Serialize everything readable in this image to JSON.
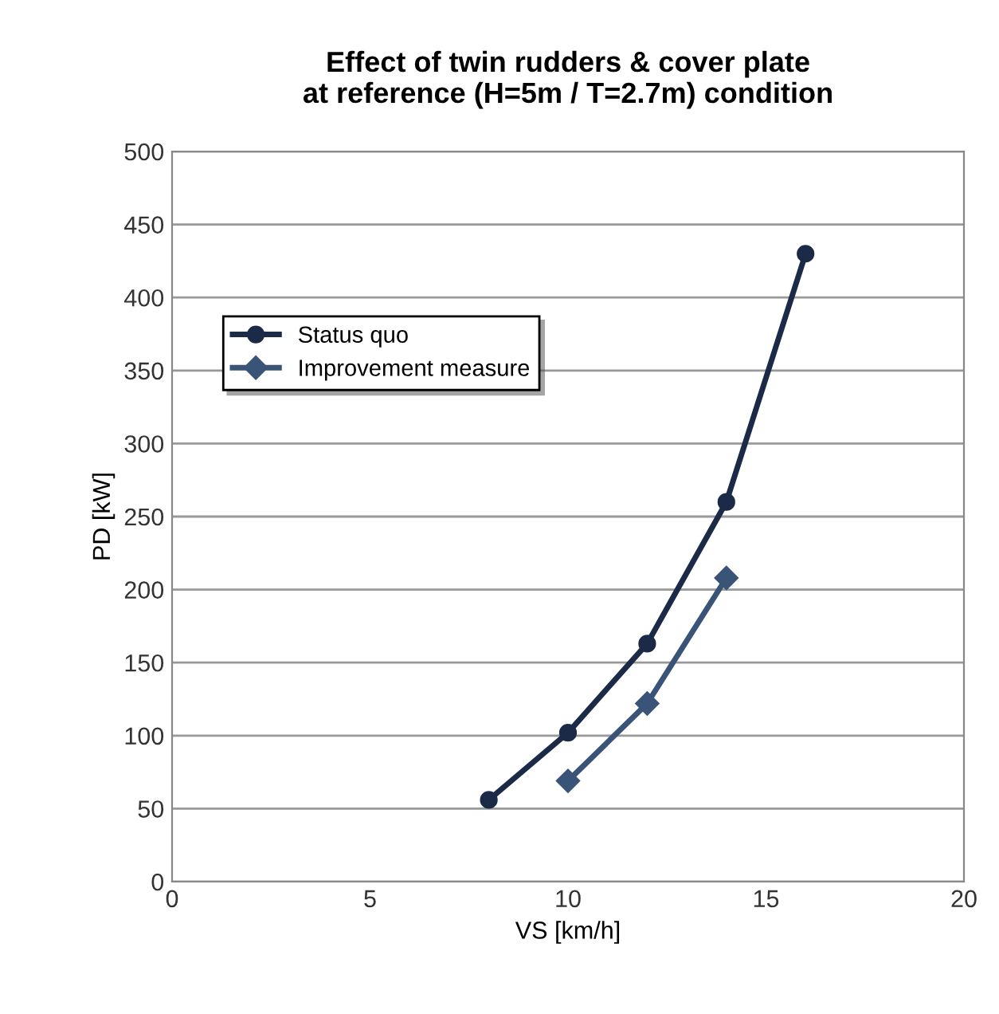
{
  "chart_data": {
    "type": "line",
    "title": "Effect of twin rudders & cover plate\nat reference (H=5m / T=2.7m) condition",
    "xlabel": "VS [km/h]",
    "ylabel": "PD [kW]",
    "xlim": [
      0,
      20
    ],
    "xticks": [
      0,
      5,
      10,
      15,
      20
    ],
    "ylim": [
      0,
      500
    ],
    "yticks": [
      0,
      50,
      100,
      150,
      200,
      250,
      300,
      350,
      400,
      450,
      500
    ],
    "grid": "y",
    "legend": "top left",
    "line_style": "solid",
    "series": [
      {
        "name": "Status quo",
        "color": "#1b2a47",
        "marker": "circle",
        "x": [
          8,
          10,
          12,
          14,
          16
        ],
        "values": [
          56,
          102,
          163,
          260,
          430
        ]
      },
      {
        "name": "Improvement measure",
        "color": "#3a5478",
        "marker": "diamond",
        "x": [
          10,
          12,
          14
        ],
        "values": [
          69,
          122,
          208
        ]
      }
    ]
  }
}
